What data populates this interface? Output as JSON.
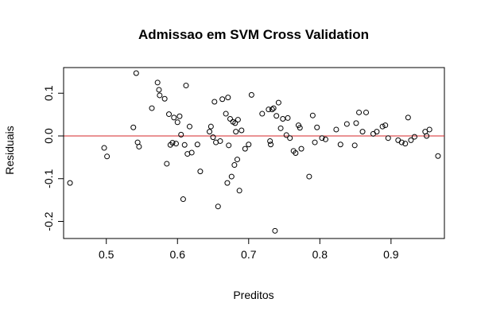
{
  "chart_data": {
    "type": "scatter",
    "title": "Admissao em SVM Cross Validation",
    "xlabel": "Preditos",
    "ylabel": "Residuais",
    "xlim": [
      0.44,
      0.975
    ],
    "ylim": [
      -0.24,
      0.16
    ],
    "x_ticks": [
      0.5,
      0.6,
      0.7,
      0.8,
      0.9
    ],
    "x_tick_labels": [
      "0.5",
      "0.6",
      "0.7",
      "0.8",
      "0.9"
    ],
    "y_ticks": [
      -0.2,
      -0.1,
      0.0,
      0.1
    ],
    "y_tick_labels": [
      "-0.2",
      "-0.1",
      "0.0",
      "0.1"
    ],
    "reference_line": {
      "y": 0,
      "color": "#d62728"
    },
    "grid": false,
    "series": [
      {
        "marker": "open-circle",
        "x": [
          0.449,
          0.497,
          0.501,
          0.538,
          0.542,
          0.544,
          0.546,
          0.564,
          0.572,
          0.574,
          0.575,
          0.582,
          0.585,
          0.588,
          0.59,
          0.593,
          0.595,
          0.598,
          0.6,
          0.603,
          0.605,
          0.608,
          0.61,
          0.612,
          0.614,
          0.617,
          0.62,
          0.628,
          0.632,
          0.645,
          0.647,
          0.65,
          0.652,
          0.654,
          0.657,
          0.66,
          0.663,
          0.668,
          0.67,
          0.671,
          0.672,
          0.674,
          0.676,
          0.678,
          0.68,
          0.681,
          0.682,
          0.684,
          0.685,
          0.687,
          0.69,
          0.695,
          0.7,
          0.704,
          0.719,
          0.728,
          0.73,
          0.731,
          0.733,
          0.735,
          0.737,
          0.739,
          0.742,
          0.745,
          0.748,
          0.753,
          0.755,
          0.758,
          0.763,
          0.766,
          0.77,
          0.772,
          0.774,
          0.785,
          0.79,
          0.793,
          0.796,
          0.803,
          0.808,
          0.823,
          0.829,
          0.838,
          0.849,
          0.851,
          0.855,
          0.86,
          0.865,
          0.875,
          0.88,
          0.888,
          0.892,
          0.896,
          0.91,
          0.915,
          0.92,
          0.924,
          0.928,
          0.933,
          0.948,
          0.95,
          0.954,
          0.966
        ],
        "y": [
          -0.11,
          -0.028,
          -0.048,
          0.02,
          0.147,
          -0.015,
          -0.025,
          0.065,
          0.125,
          0.108,
          0.095,
          0.087,
          -0.065,
          0.051,
          -0.021,
          -0.016,
          0.043,
          -0.018,
          0.032,
          0.046,
          0.003,
          -0.148,
          -0.021,
          0.118,
          -0.042,
          0.022,
          -0.039,
          -0.02,
          -0.083,
          0.01,
          0.022,
          -0.003,
          0.08,
          -0.015,
          -0.165,
          -0.012,
          0.086,
          0.052,
          -0.11,
          0.09,
          -0.022,
          0.04,
          -0.095,
          0.033,
          -0.068,
          0.03,
          0.01,
          -0.055,
          0.038,
          -0.128,
          0.013,
          -0.03,
          -0.02,
          0.096,
          0.052,
          0.062,
          -0.012,
          -0.02,
          0.062,
          0.065,
          -0.222,
          0.047,
          0.078,
          0.018,
          0.04,
          0.002,
          0.042,
          -0.005,
          -0.035,
          -0.04,
          0.025,
          0.019,
          -0.03,
          -0.095,
          0.048,
          -0.015,
          0.02,
          -0.005,
          -0.008,
          0.015,
          -0.02,
          0.028,
          -0.022,
          0.03,
          0.055,
          0.01,
          0.055,
          0.005,
          0.01,
          0.022,
          0.025,
          -0.005,
          -0.01,
          -0.015,
          -0.018,
          0.043,
          -0.01,
          -0.002,
          0.01,
          0.0,
          0.015,
          -0.047
        ]
      }
    ]
  }
}
